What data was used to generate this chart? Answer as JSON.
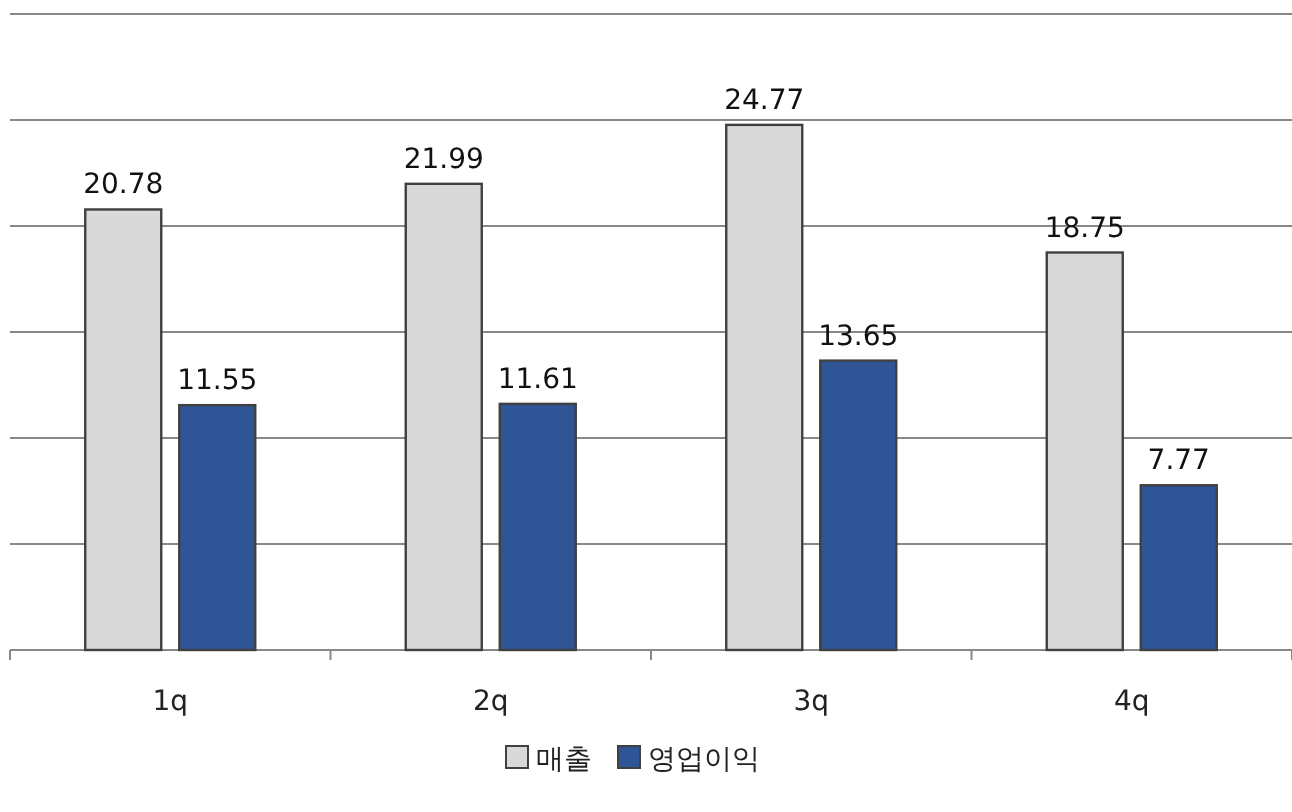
{
  "chart_data": {
    "type": "bar",
    "categories": [
      "1q",
      "2q",
      "3q",
      "4q"
    ],
    "series": [
      {
        "name": "매출",
        "color": "#d9d9d9",
        "values": [
          20.78,
          21.99,
          24.77,
          18.75
        ]
      },
      {
        "name": "영업이익",
        "color": "#2f5597",
        "values": [
          11.55,
          11.61,
          13.65,
          7.77
        ]
      }
    ],
    "ylim": [
      0,
      30
    ],
    "yticks": [
      {
        "value": 0,
        "label": null
      },
      {
        "value": 5,
        "label": null
      },
      {
        "value": 10,
        "label": null
      },
      {
        "value": 15,
        "label": null
      },
      {
        "value": 20,
        "label": null
      },
      {
        "value": 25,
        "label": null
      },
      {
        "value": 30,
        "label": null
      }
    ],
    "grid": "y",
    "legend": "bottom",
    "data_labels": true,
    "tick_labels": "x"
  }
}
